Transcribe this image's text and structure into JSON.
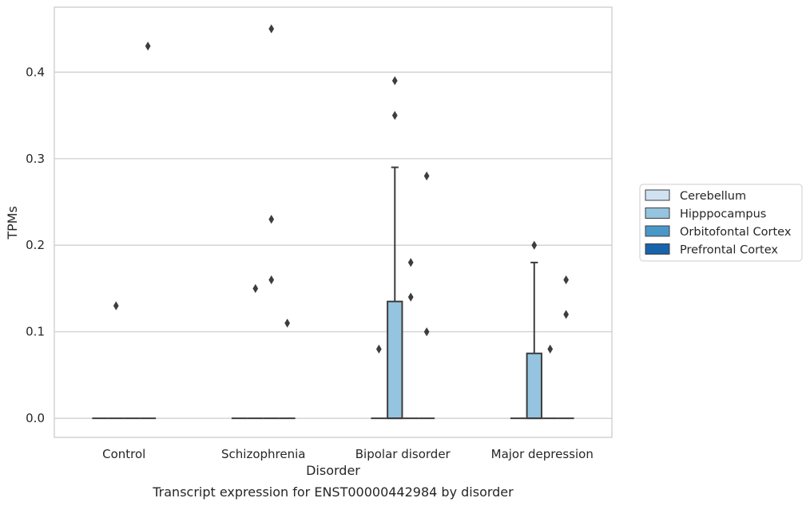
{
  "chart_data": {
    "type": "box",
    "caption": "Transcript expression for ENST00000442984 by disorder",
    "xlabel": "Disorder",
    "ylabel": "TPMs",
    "ylim": [
      -0.022,
      0.475
    ],
    "yticks": [
      0.0,
      0.1,
      0.2,
      0.3,
      0.4
    ],
    "ytick_labels": [
      "0.0",
      "0.1",
      "0.2",
      "0.3",
      "0.4"
    ],
    "grid": "horizontal",
    "legend_position": "right",
    "categories": [
      "Control",
      "Schizophrenia",
      "Bipolar disorder",
      "Major depression"
    ],
    "series": [
      {
        "name": "Cerebellum",
        "color": "#d0e1f2",
        "boxes": [
          {
            "q1": 0,
            "median": 0,
            "q3": 0,
            "whisker_low": 0,
            "whisker_high": 0,
            "outliers": []
          },
          {
            "q1": 0,
            "median": 0,
            "q3": 0,
            "whisker_low": 0,
            "whisker_high": 0,
            "outliers": []
          },
          {
            "q1": 0,
            "median": 0,
            "q3": 0,
            "whisker_low": 0,
            "whisker_high": 0,
            "outliers": [
              0.08
            ]
          },
          {
            "q1": 0,
            "median": 0,
            "q3": 0,
            "whisker_low": 0,
            "whisker_high": 0,
            "outliers": []
          }
        ]
      },
      {
        "name": "Hipppocampus",
        "color": "#94c4df",
        "boxes": [
          {
            "q1": 0,
            "median": 0,
            "q3": 0,
            "whisker_low": 0,
            "whisker_high": 0,
            "outliers": [
              0.13
            ]
          },
          {
            "q1": 0,
            "median": 0,
            "q3": 0,
            "whisker_low": 0,
            "whisker_high": 0,
            "outliers": [
              0.15
            ]
          },
          {
            "q1": 0,
            "median": 0,
            "q3": 0.135,
            "whisker_low": 0,
            "whisker_high": 0.29,
            "outliers": [
              0.39,
              0.35
            ]
          },
          {
            "q1": 0,
            "median": 0,
            "q3": 0.075,
            "whisker_low": 0,
            "whisker_high": 0.18,
            "outliers": [
              0.2
            ]
          }
        ]
      },
      {
        "name": "Orbitofontal Cortex",
        "color": "#4a98c9",
        "boxes": [
          {
            "q1": 0,
            "median": 0,
            "q3": 0,
            "whisker_low": 0,
            "whisker_high": 0,
            "outliers": []
          },
          {
            "q1": 0,
            "median": 0,
            "q3": 0,
            "whisker_low": 0,
            "whisker_high": 0,
            "outliers": [
              0.45,
              0.23,
              0.16
            ]
          },
          {
            "q1": 0,
            "median": 0,
            "q3": 0,
            "whisker_low": 0,
            "whisker_high": 0,
            "outliers": [
              0.18,
              0.14
            ]
          },
          {
            "q1": 0,
            "median": 0,
            "q3": 0,
            "whisker_low": 0,
            "whisker_high": 0,
            "outliers": [
              0.08
            ]
          }
        ]
      },
      {
        "name": "Prefrontal Cortex",
        "color": "#1764ab",
        "boxes": [
          {
            "q1": 0,
            "median": 0,
            "q3": 0,
            "whisker_low": 0,
            "whisker_high": 0,
            "outliers": [
              0.43
            ]
          },
          {
            "q1": 0,
            "median": 0,
            "q3": 0,
            "whisker_low": 0,
            "whisker_high": 0,
            "outliers": [
              0.11
            ]
          },
          {
            "q1": 0,
            "median": 0,
            "q3": 0,
            "whisker_low": 0,
            "whisker_high": 0,
            "outliers": [
              0.28,
              0.1
            ]
          },
          {
            "q1": 0,
            "median": 0,
            "q3": 0,
            "whisker_low": 0,
            "whisker_high": 0,
            "outliers": [
              0.16,
              0.12
            ]
          }
        ]
      }
    ]
  },
  "hipp_outlier_offset_note_removed": null
}
